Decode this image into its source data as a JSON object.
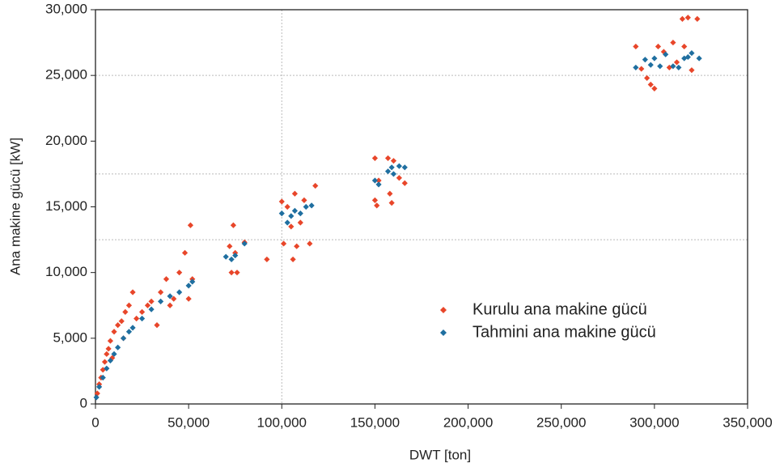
{
  "chart_data": {
    "type": "scatter",
    "x_label": "DWT [ton]",
    "y_label": "Ana makine gücü [kW]",
    "xlim": [
      0,
      350000
    ],
    "ylim": [
      0,
      30000
    ],
    "xticks": [
      0,
      {
        "value": 50000,
        "label": "50,000"
      },
      {
        "value": 100000,
        "label": "100,000"
      },
      {
        "value": 150000,
        "label": "150,000"
      },
      {
        "value": 200000,
        "label": "200,000"
      },
      {
        "value": 250000,
        "label": "250,000"
      },
      {
        "value": 300000,
        "label": "300,000"
      },
      {
        "value": 350000,
        "label": "350,000"
      }
    ],
    "yticks": [
      0,
      {
        "value": 5000,
        "label": "5,000"
      },
      {
        "value": 10000,
        "label": "10,000"
      },
      {
        "value": 15000,
        "label": "15,000"
      },
      {
        "value": 20000,
        "label": "20,000"
      },
      {
        "value": 25000,
        "label": "25,000"
      },
      {
        "value": 30000,
        "label": "30,000"
      }
    ],
    "x_grid": [
      100000
    ],
    "y_grid": [
      12500,
      17500,
      25000
    ],
    "legend": "lower-right",
    "series": [
      {
        "name": "Kurulu ana makine gücü",
        "color": "#e8462a",
        "x": [
          1000,
          2000,
          3000,
          4000,
          5000,
          6000,
          7000,
          8000,
          9000,
          10000,
          12000,
          14000,
          15000,
          16000,
          18000,
          20000,
          22000,
          25000,
          28000,
          30000,
          33000,
          35000,
          38000,
          40000,
          42000,
          45000,
          48000,
          50000,
          51000,
          52000,
          72000,
          73000,
          74000,
          75000,
          76000,
          80000,
          92000,
          100000,
          101000,
          103000,
          105000,
          106000,
          107000,
          108000,
          110000,
          112000,
          115000,
          118000,
          150000,
          150000,
          151000,
          152000,
          157000,
          158000,
          159000,
          160000,
          163000,
          166000,
          290000,
          293000,
          296000,
          298000,
          300000,
          302000,
          305000,
          308000,
          310000,
          312000,
          315000,
          316000,
          318000,
          320000,
          323000
        ],
        "values": [
          800,
          1500,
          2000,
          2600,
          3200,
          3800,
          4200,
          4800,
          3500,
          5500,
          6000,
          6300,
          5000,
          7000,
          7500,
          8500,
          6500,
          7000,
          7500,
          7800,
          6000,
          8500,
          9500,
          7500,
          8000,
          10000,
          11500,
          8000,
          13600,
          9500,
          12000,
          10000,
          13600,
          11500,
          10000,
          12300,
          11000,
          15400,
          12200,
          15000,
          13500,
          11000,
          16000,
          12000,
          13800,
          15500,
          12200,
          16600,
          18700,
          15500,
          15100,
          17000,
          18700,
          16000,
          15300,
          18500,
          17200,
          16800,
          27200,
          25500,
          24800,
          24300,
          24000,
          27200,
          26800,
          25600,
          27500,
          26000,
          29300,
          27200,
          29400,
          25400,
          29300
        ]
      },
      {
        "name": "Tahmini ana makine gücü",
        "color": "#1f6fa0",
        "x": [
          500,
          2000,
          4000,
          6000,
          8000,
          10000,
          12000,
          15000,
          18000,
          20000,
          25000,
          30000,
          35000,
          40000,
          45000,
          50000,
          52000,
          70000,
          73000,
          75000,
          80000,
          100000,
          103000,
          105000,
          107000,
          110000,
          113000,
          116000,
          150000,
          152000,
          157000,
          159000,
          160000,
          163000,
          166000,
          290000,
          295000,
          298000,
          300000,
          303000,
          306000,
          310000,
          313000,
          316000,
          318000,
          320000,
          324000
        ],
        "values": [
          500,
          1300,
          2000,
          2700,
          3300,
          3800,
          4300,
          5000,
          5500,
          5800,
          6500,
          7200,
          7800,
          8200,
          8500,
          9000,
          9300,
          11200,
          11000,
          11300,
          12200,
          14500,
          13800,
          14300,
          14700,
          14500,
          15000,
          15100,
          17000,
          16700,
          17700,
          18000,
          17500,
          18100,
          18000,
          25600,
          26200,
          25800,
          26300,
          25700,
          26600,
          25700,
          25600,
          26300,
          26400,
          26700,
          26300
        ]
      }
    ]
  }
}
